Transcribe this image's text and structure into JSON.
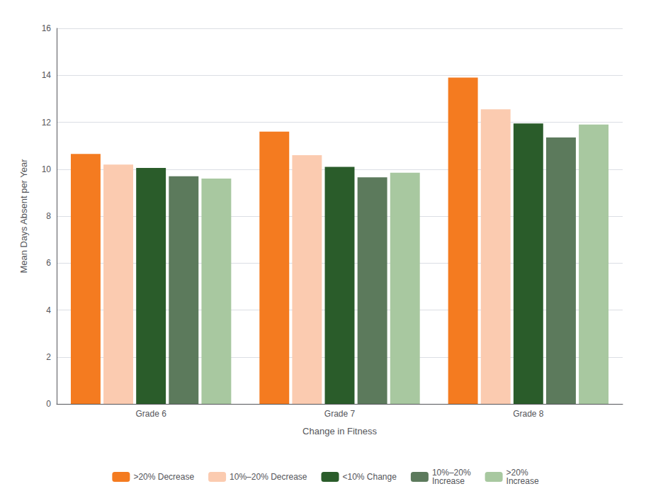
{
  "chart_data": {
    "type": "bar",
    "categories": [
      "Grade 6",
      "Grade 7",
      "Grade 8"
    ],
    "series": [
      {
        "name": ">20% Decrease",
        "color": "#F47B20",
        "values": [
          10.65,
          11.6,
          13.9
        ]
      },
      {
        "name": "10%–20% Decrease",
        "color": "#FBCBB0",
        "values": [
          10.2,
          10.6,
          12.55
        ]
      },
      {
        "name": "<10% Change",
        "color": "#2A5C2A",
        "values": [
          10.05,
          10.1,
          11.95
        ]
      },
      {
        "name": "10%–20%\nIncrease",
        "color": "#5C7A5C",
        "values": [
          9.7,
          9.65,
          11.35
        ]
      },
      {
        "name": ">20%\nIncrease",
        "color": "#A8C8A0",
        "values": [
          9.6,
          9.85,
          11.9
        ]
      }
    ],
    "xlabel": "Change in Fitness",
    "ylabel": "Mean Days Absent per Year",
    "ylim": [
      0,
      16
    ],
    "yticks": [
      0,
      2,
      4,
      6,
      8,
      10,
      12,
      14,
      16
    ],
    "grid": true,
    "legend": "bottom"
  }
}
